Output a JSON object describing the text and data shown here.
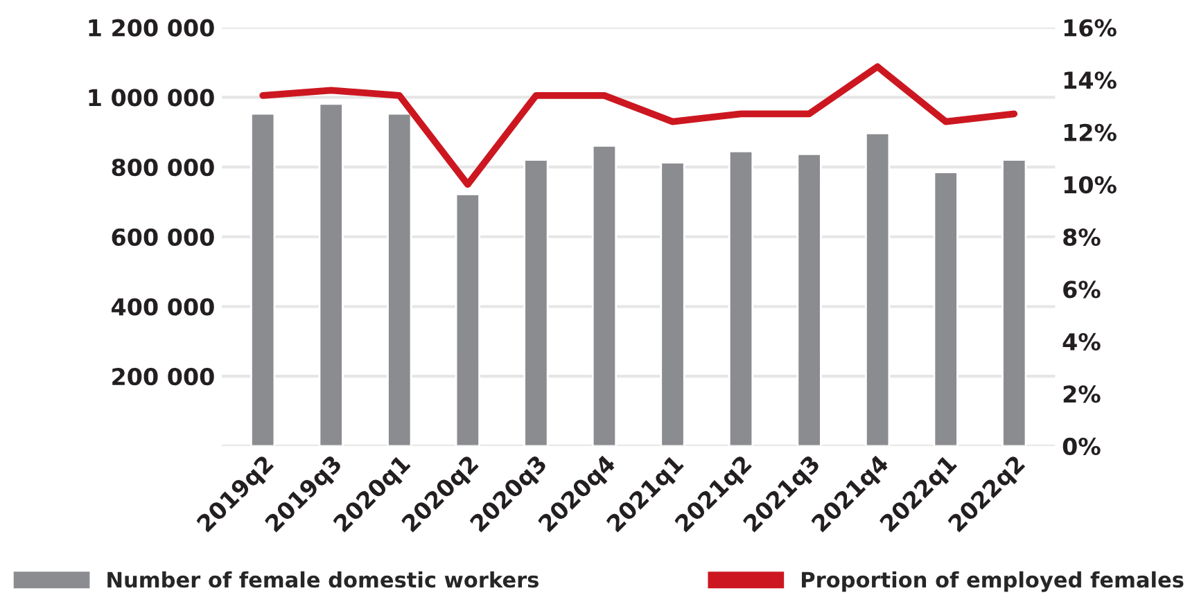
{
  "chart_data": {
    "type": "bar",
    "categories": [
      "2019q2",
      "2019q3",
      "2020q1",
      "2020q2",
      "2020q3",
      "2020q4",
      "2021q1",
      "2021q2",
      "2021q3",
      "2021q4",
      "2022q1",
      "2022q2"
    ],
    "series": [
      {
        "name": "Number of female domestic workers",
        "color": "#8b8c90",
        "values": [
          953000,
          981000,
          953000,
          722000,
          821000,
          861000,
          813000,
          845000,
          837000,
          897000,
          785000,
          821000
        ]
      },
      {
        "name": "Proportion of employed females",
        "type": "line",
        "axis": "y2",
        "color": "#cc1720",
        "values": [
          13.4,
          13.6,
          13.4,
          10.0,
          13.4,
          13.4,
          12.4,
          12.7,
          12.7,
          14.5,
          12.4,
          12.7
        ]
      }
    ],
    "ylim": [
      0,
      1200000
    ],
    "yticks": [
      {
        "value": 0,
        "label": null
      },
      {
        "value": 200000,
        "label": "200 000"
      },
      {
        "value": 400000,
        "label": "400 000"
      },
      {
        "value": 600000,
        "label": "600 000"
      },
      {
        "value": 800000,
        "label": "800 000"
      },
      {
        "value": 1000000,
        "label": "1 000 000"
      },
      {
        "value": 1200000,
        "label": "1 200 000"
      }
    ],
    "y2lim": [
      0,
      16
    ],
    "y2ticks": [
      {
        "value": 0,
        "label": "0%"
      },
      {
        "value": 2,
        "label": "2%"
      },
      {
        "value": 4,
        "label": "4%"
      },
      {
        "value": 6,
        "label": "6%"
      },
      {
        "value": 8,
        "label": "8%"
      },
      {
        "value": 10,
        "label": "10%"
      },
      {
        "value": 12,
        "label": "12%"
      },
      {
        "value": 14,
        "label": "14%"
      },
      {
        "value": 16,
        "label": "16%"
      }
    ],
    "grid": "y",
    "legend": "bottom"
  }
}
